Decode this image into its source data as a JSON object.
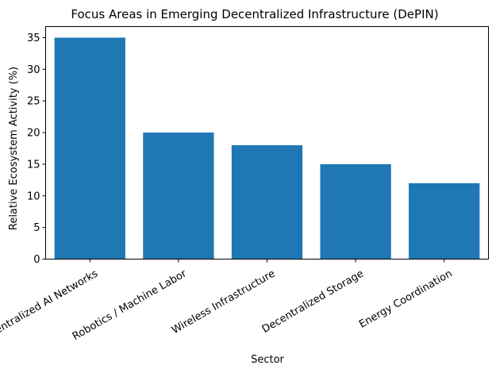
{
  "chart_data": {
    "type": "bar",
    "title": "Focus Areas in Emerging Decentralized Infrastructure (DePIN)",
    "xlabel": "Sector",
    "ylabel": "Relative Ecosystem Activity (%)",
    "categories": [
      "Decentralized AI Networks",
      "Robotics / Machine Labor",
      "Wireless Infrastructure",
      "Decentralized Storage",
      "Energy Coordination"
    ],
    "values": [
      35,
      20,
      18,
      15,
      12
    ],
    "ylim": [
      0,
      36.75
    ],
    "yticks": [
      0,
      5,
      10,
      15,
      20,
      25,
      30,
      35
    ],
    "bar_color": "#1f77b4",
    "grid": false,
    "xtick_rotation": 30
  }
}
